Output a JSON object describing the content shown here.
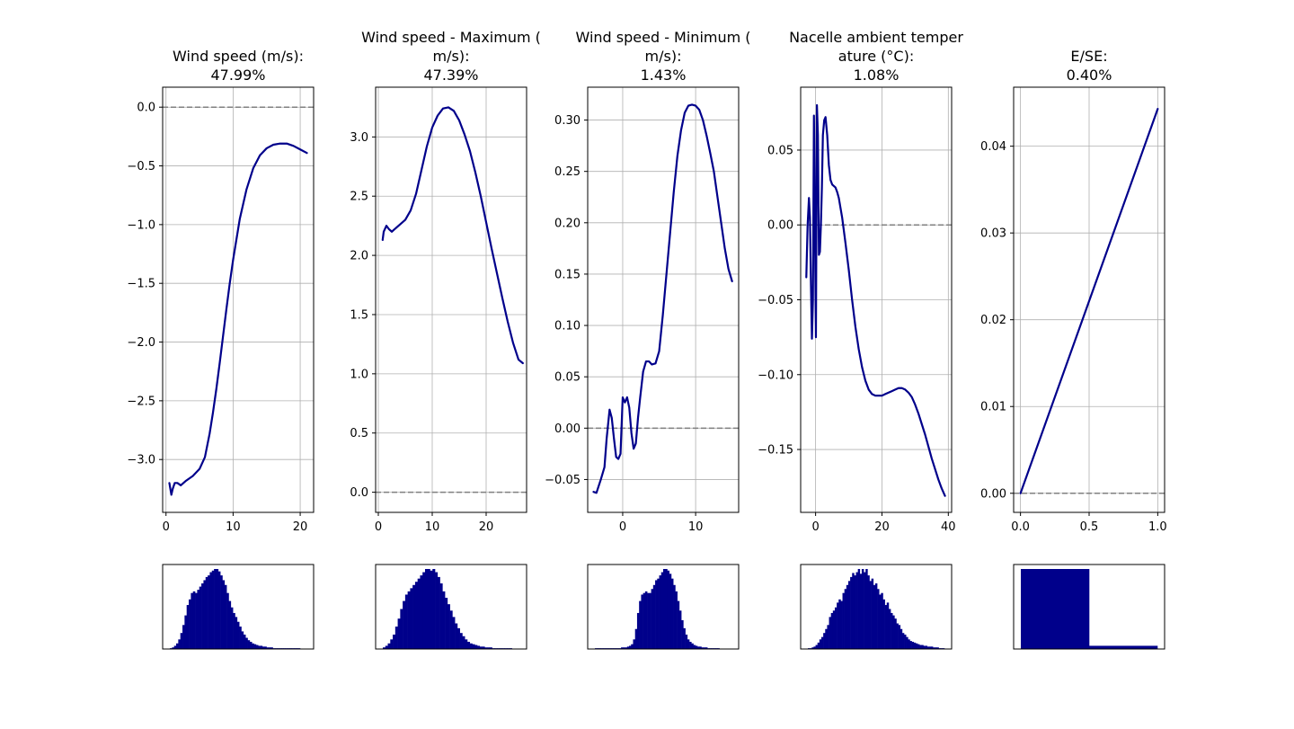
{
  "figure": {
    "background": "#ffffff",
    "line_color": "#00008b",
    "hist_color": "#00008b",
    "grid_color": "#b0b0b0",
    "zero_line_color": "#808080"
  },
  "chart_data": [
    {
      "type": "line",
      "title_lines": [
        "Wind speed (m/s):",
        "47.99%"
      ],
      "xlim": [
        -0.5,
        22
      ],
      "ylim": [
        -3.45,
        0.17
      ],
      "xticks": [
        0,
        10,
        20
      ],
      "xtick_labels": [
        "0",
        "10",
        "20"
      ],
      "yticks": [
        0.0,
        -0.5,
        -1.0,
        -1.5,
        -2.0,
        -2.5,
        -3.0
      ],
      "ytick_labels": [
        "0.0",
        "−0.5",
        "−1.0",
        "−1.5",
        "−2.0",
        "−2.5",
        "−3.0"
      ],
      "grid": true,
      "zero_line": 0,
      "series": [
        {
          "x": [
            0.5,
            0.8,
            1.0,
            1.3,
            1.7,
            2.2,
            3.0,
            4.0,
            5.0,
            5.8,
            6.5,
            7.0,
            7.5,
            8.0,
            8.5,
            9.0,
            9.5,
            10.0,
            11.0,
            12.0,
            13.0,
            14.0,
            15.0,
            16.0,
            17.0,
            18.0,
            19.0,
            20.0,
            21.0
          ],
          "y": [
            -3.2,
            -3.3,
            -3.25,
            -3.2,
            -3.2,
            -3.22,
            -3.18,
            -3.14,
            -3.08,
            -2.98,
            -2.78,
            -2.6,
            -2.4,
            -2.18,
            -1.95,
            -1.72,
            -1.5,
            -1.3,
            -0.95,
            -0.7,
            -0.52,
            -0.41,
            -0.35,
            -0.32,
            -0.31,
            -0.31,
            -0.33,
            -0.36,
            -0.39
          ]
        }
      ],
      "histogram": [
        1,
        2,
        4,
        7,
        12,
        20,
        30,
        42,
        55,
        62,
        70,
        72,
        70,
        74,
        78,
        82,
        86,
        90,
        92,
        96,
        98,
        100,
        100,
        97,
        92,
        86,
        80,
        70,
        60,
        52,
        45,
        40,
        34,
        28,
        22,
        18,
        14,
        11,
        9,
        7,
        6,
        5,
        4,
        4,
        3,
        3,
        2,
        2,
        2,
        1,
        1,
        1,
        1,
        1,
        1,
        1,
        1,
        1,
        1,
        1,
        1,
        1,
        0.5,
        0.5,
        0.5
      ]
    },
    {
      "type": "line",
      "title_lines": [
        "Wind speed - Maximum (",
        "m/s):",
        "47.39%"
      ],
      "xlim": [
        -0.5,
        27.5
      ],
      "ylim": [
        -0.17,
        3.42
      ],
      "xticks": [
        0,
        10,
        20
      ],
      "xtick_labels": [
        "0",
        "10",
        "20"
      ],
      "yticks": [
        0.0,
        0.5,
        1.0,
        1.5,
        2.0,
        2.5,
        3.0
      ],
      "ytick_labels": [
        "0.0",
        "0.5",
        "1.0",
        "1.5",
        "2.0",
        "2.5",
        "3.0"
      ],
      "grid": true,
      "zero_line": 0,
      "series": [
        {
          "x": [
            0.8,
            1.0,
            1.5,
            2.0,
            2.5,
            3.0,
            4.0,
            5.0,
            6.0,
            7.0,
            8.0,
            9.0,
            10.0,
            11.0,
            12.0,
            13.0,
            14.0,
            15.0,
            16.0,
            17.0,
            18.0,
            19.0,
            20.0,
            21.0,
            22.0,
            23.0,
            24.0,
            25.0,
            26.0,
            26.8
          ],
          "y": [
            2.13,
            2.2,
            2.25,
            2.22,
            2.2,
            2.22,
            2.26,
            2.3,
            2.38,
            2.52,
            2.72,
            2.92,
            3.08,
            3.18,
            3.24,
            3.25,
            3.22,
            3.14,
            3.02,
            2.88,
            2.7,
            2.5,
            2.28,
            2.06,
            1.85,
            1.64,
            1.44,
            1.26,
            1.12,
            1.09
          ]
        }
      ],
      "histogram": [
        2,
        4,
        7,
        12,
        18,
        28,
        38,
        50,
        60,
        68,
        72,
        76,
        80,
        84,
        88,
        92,
        96,
        100,
        100,
        98,
        100,
        96,
        90,
        82,
        72,
        64,
        56,
        48,
        40,
        32,
        26,
        20,
        16,
        12,
        9,
        7,
        6,
        5,
        4,
        3,
        3,
        2,
        2,
        2,
        1,
        1,
        1,
        1,
        1,
        1,
        1,
        1,
        0.5,
        0.5,
        0.5
      ]
    },
    {
      "type": "line",
      "title_lines": [
        "Wind speed - Minimum (",
        "m/s):",
        "1.43%"
      ],
      "xlim": [
        -4.8,
        15.9
      ],
      "ylim": [
        -0.082,
        0.332
      ],
      "xticks": [
        0,
        10
      ],
      "xtick_labels": [
        "0",
        "10"
      ],
      "yticks": [
        -0.05,
        0.0,
        0.05,
        0.1,
        0.15,
        0.2,
        0.25,
        0.3
      ],
      "ytick_labels": [
        "−0.05",
        "0.00",
        "0.05",
        "0.10",
        "0.15",
        "0.20",
        "0.25",
        "0.30"
      ],
      "grid": true,
      "zero_line": 0,
      "series": [
        {
          "x": [
            -4.0,
            -3.6,
            -3.0,
            -2.5,
            -2.2,
            -1.8,
            -1.5,
            -1.2,
            -0.9,
            -0.6,
            -0.3,
            0.0,
            0.3,
            0.6,
            0.9,
            1.2,
            1.5,
            1.8,
            2.1,
            2.4,
            2.8,
            3.2,
            3.6,
            4.0,
            4.5,
            5.0,
            5.5,
            6.0,
            6.5,
            7.0,
            7.5,
            8.0,
            8.5,
            9.0,
            9.5,
            10.0,
            10.5,
            11.0,
            11.5,
            12.0,
            12.5,
            13.0,
            13.5,
            14.0,
            14.5,
            15.0
          ],
          "y": [
            -0.062,
            -0.063,
            -0.05,
            -0.038,
            -0.01,
            0.018,
            0.01,
            -0.01,
            -0.028,
            -0.03,
            -0.025,
            0.03,
            0.025,
            0.03,
            0.02,
            -0.005,
            -0.02,
            -0.015,
            0.01,
            0.03,
            0.055,
            0.065,
            0.065,
            0.062,
            0.063,
            0.075,
            0.11,
            0.15,
            0.19,
            0.23,
            0.265,
            0.29,
            0.307,
            0.314,
            0.315,
            0.314,
            0.31,
            0.3,
            0.285,
            0.268,
            0.25,
            0.225,
            0.2,
            0.175,
            0.155,
            0.143
          ]
        }
      ],
      "histogram": [
        1,
        1,
        1,
        1,
        1,
        1,
        1,
        1,
        1,
        1,
        1,
        1,
        1,
        2,
        2,
        2,
        3,
        4,
        6,
        12,
        25,
        45,
        60,
        68,
        70,
        72,
        70,
        70,
        75,
        80,
        86,
        88,
        92,
        96,
        100,
        100,
        98,
        94,
        88,
        80,
        72,
        60,
        48,
        36,
        26,
        18,
        12,
        9,
        7,
        5,
        4,
        3,
        3,
        2,
        2,
        2,
        1,
        1,
        1,
        1,
        1,
        1,
        0.5,
        0.5,
        0.5,
        0.5,
        0.5,
        0.5
      ]
    },
    {
      "type": "line",
      "title_lines": [
        "Nacelle ambient temper",
        "ature (°C):",
        "1.08%"
      ],
      "xlim": [
        -4.5,
        41
      ],
      "ylim": [
        -0.192,
        0.092
      ],
      "xticks": [
        0,
        20,
        40
      ],
      "xtick_labels": [
        "0",
        "20",
        "40"
      ],
      "yticks": [
        -0.15,
        -0.1,
        -0.05,
        0.0,
        0.05
      ],
      "ytick_labels": [
        "−0.15",
        "−0.10",
        "−0.05",
        "0.00",
        "0.05"
      ],
      "grid": true,
      "zero_line": 0,
      "series": [
        {
          "x": [
            -2.8,
            -2.4,
            -2.0,
            -1.7,
            -1.4,
            -1.1,
            -0.8,
            -0.5,
            -0.2,
            0.1,
            0.4,
            0.7,
            1.0,
            1.3,
            1.6,
            1.9,
            2.2,
            2.6,
            3.0,
            3.5,
            4.0,
            4.5,
            5.0,
            5.5,
            6.0,
            6.5,
            7.0,
            8.0,
            9.0,
            10.0,
            11.0,
            12.0,
            13.0,
            14.0,
            15.0,
            16.0,
            17.0,
            18.0,
            19.0,
            20.0,
            21.0,
            22.0,
            23.0,
            24.0,
            25.0,
            26.0,
            27.0,
            28.0,
            29.0,
            30.0,
            31.0,
            32.0,
            33.0,
            34.0,
            35.0,
            36.0,
            37.0,
            38.0,
            39.0
          ],
          "y": [
            -0.035,
            0.0,
            0.018,
            0.005,
            -0.04,
            -0.076,
            -0.05,
            0.073,
            0.0,
            -0.075,
            0.08,
            0.06,
            -0.02,
            -0.018,
            0.0,
            0.025,
            0.06,
            0.07,
            0.072,
            0.06,
            0.04,
            0.03,
            0.027,
            0.026,
            0.025,
            0.022,
            0.018,
            0.005,
            -0.012,
            -0.03,
            -0.05,
            -0.068,
            -0.083,
            -0.095,
            -0.104,
            -0.11,
            -0.113,
            -0.114,
            -0.114,
            -0.114,
            -0.113,
            -0.112,
            -0.111,
            -0.11,
            -0.109,
            -0.109,
            -0.11,
            -0.112,
            -0.115,
            -0.12,
            -0.126,
            -0.133,
            -0.14,
            -0.148,
            -0.156,
            -0.163,
            -0.17,
            -0.176,
            -0.181
          ]
        }
      ],
      "histogram": [
        1,
        1,
        2,
        3,
        5,
        8,
        12,
        15,
        20,
        25,
        30,
        40,
        45,
        48,
        52,
        58,
        62,
        60,
        70,
        75,
        80,
        85,
        90,
        95,
        92,
        96,
        100,
        94,
        100,
        96,
        100,
        92,
        85,
        88,
        80,
        82,
        75,
        68,
        70,
        62,
        55,
        58,
        50,
        45,
        42,
        38,
        32,
        30,
        25,
        20,
        18,
        15,
        12,
        10,
        9,
        8,
        7,
        6,
        5,
        5,
        4,
        4,
        3,
        3,
        3,
        2,
        2,
        2,
        1,
        1,
        1
      ]
    },
    {
      "type": "line",
      "title_lines": [
        "E/SE:",
        "0.40%"
      ],
      "xlim": [
        -0.05,
        1.05
      ],
      "ylim": [
        -0.0022,
        0.0468
      ],
      "xticks": [
        0.0,
        0.5,
        1.0
      ],
      "xtick_labels": [
        "0.0",
        "0.5",
        "1.0"
      ],
      "yticks": [
        0.0,
        0.01,
        0.02,
        0.03,
        0.04
      ],
      "ytick_labels": [
        "0.00",
        "0.01",
        "0.02",
        "0.03",
        "0.04"
      ],
      "grid": true,
      "zero_line": 0,
      "series": [
        {
          "x": [
            0.0,
            1.0
          ],
          "y": [
            0.0,
            0.0443
          ]
        }
      ],
      "histogram": [
        100,
        4
      ]
    }
  ]
}
